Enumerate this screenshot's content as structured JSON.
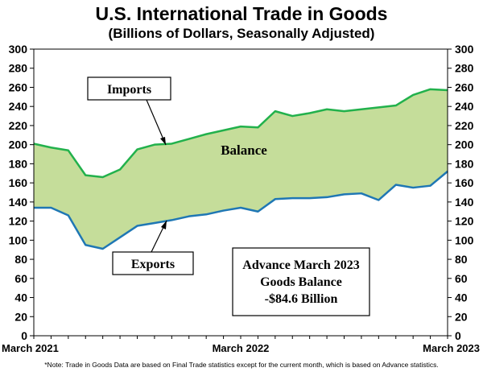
{
  "chart_data": {
    "type": "area",
    "title": "U.S. International Trade in Goods",
    "subtitle": "(Billions of Dollars, Seasonally Adjusted)",
    "ylim": [
      0,
      300
    ],
    "yticks": [
      0,
      20,
      40,
      60,
      80,
      100,
      120,
      140,
      160,
      180,
      200,
      220,
      240,
      260,
      280,
      300
    ],
    "x_tick_labels": [
      "March 2021",
      "March 2022",
      "March 2023"
    ],
    "x": [
      "Mar 2021",
      "Apr 2021",
      "May 2021",
      "Jun 2021",
      "Jul 2021",
      "Aug 2021",
      "Sep 2021",
      "Oct 2021",
      "Nov 2021",
      "Dec 2021",
      "Jan 2022",
      "Feb 2022",
      "Mar 2022",
      "Apr 2022",
      "May 2022",
      "Jun 2022",
      "Jul 2022",
      "Aug 2022",
      "Sep 2022",
      "Oct 2022",
      "Nov 2022",
      "Dec 2022",
      "Jan 2023",
      "Feb 2023",
      "Mar 2023"
    ],
    "series": [
      {
        "name": "Imports",
        "color": "#22b14c",
        "values": [
          201,
          197,
          194,
          168,
          166,
          174,
          195,
          200,
          201,
          206,
          211,
          215,
          219,
          218,
          235,
          230,
          233,
          237,
          235,
          237,
          239,
          241,
          252,
          258,
          257
        ]
      },
      {
        "name": "Exports",
        "color": "#1f77b4",
        "values": [
          134,
          134,
          126,
          95,
          91,
          103,
          115,
          118,
          121,
          125,
          127,
          131,
          134,
          130,
          143,
          144,
          144,
          145,
          148,
          149,
          142,
          158,
          155,
          157,
          172
        ]
      }
    ],
    "fill_color": "#c5dd9a",
    "area_label": "Balance",
    "callouts": {
      "imports": "Imports",
      "exports": "Exports"
    },
    "info_box": [
      "Advance March 2023",
      "Goods Balance",
      "-$84.6 Billion"
    ],
    "grid": false,
    "legend": "callouts",
    "note": "*Note: Trade in Goods Data are based on Final Trade statistics except for the current month, which is based on Advance statistics."
  }
}
